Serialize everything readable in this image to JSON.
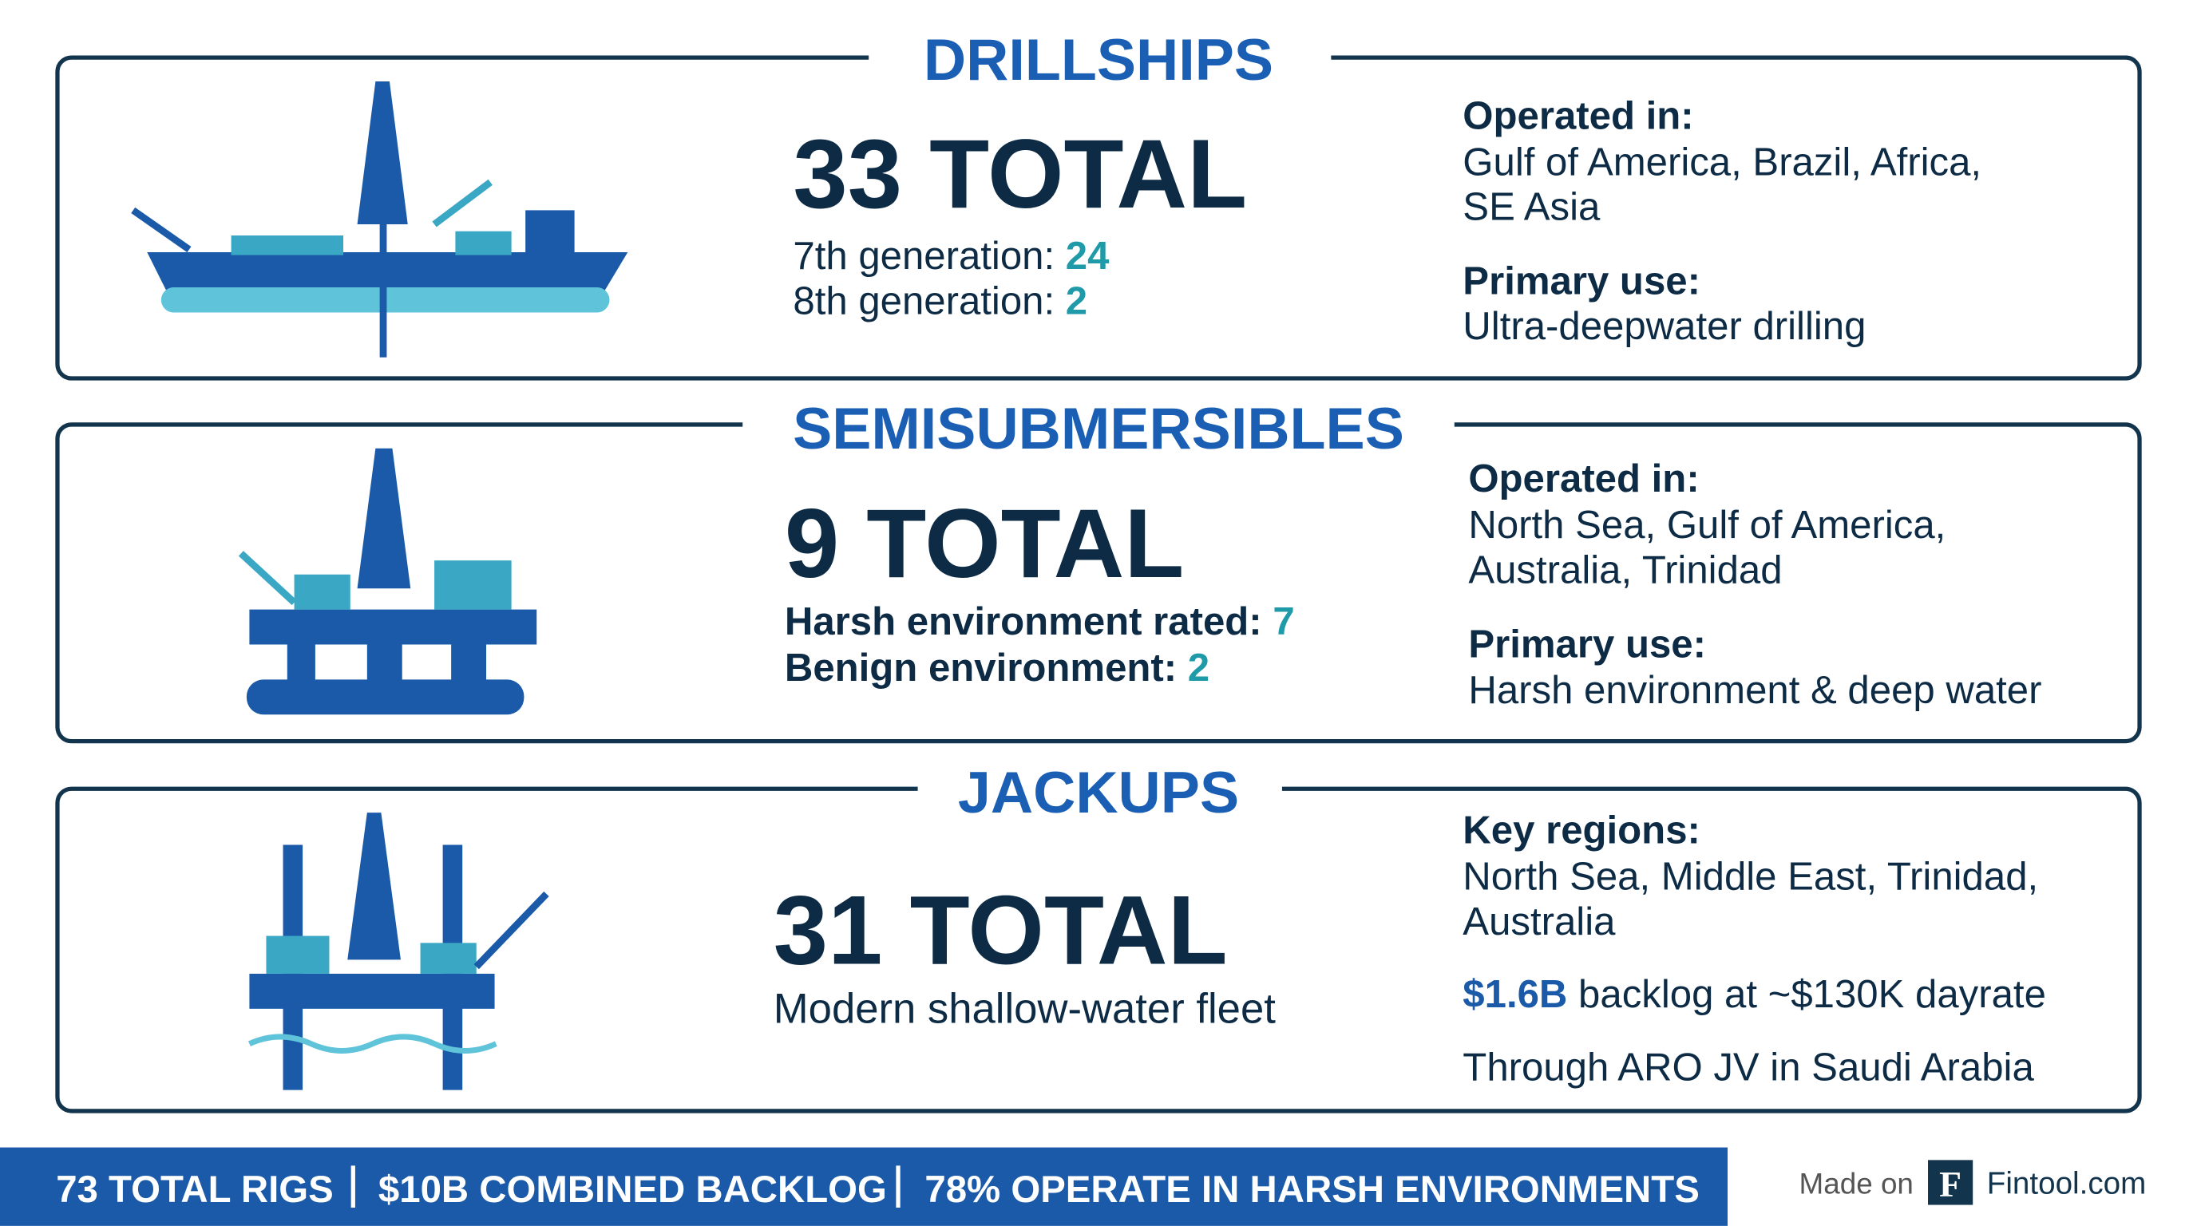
{
  "sections": [
    {
      "title": "DRILLSHIPS",
      "total": "33 TOTAL",
      "details": [
        {
          "label": "7th generation:",
          "value": "24"
        },
        {
          "label": "8th generation:",
          "value": "2"
        }
      ],
      "info": [
        {
          "label": "Operated in:",
          "lines": [
            "Gulf of America, Brazil, Africa,",
            "SE Asia"
          ]
        },
        {
          "label": "Primary use:",
          "lines": [
            "Ultra-deepwater drilling"
          ]
        }
      ]
    },
    {
      "title": "SEMISUBMERSIBLES",
      "total": "9 TOTAL",
      "details": [
        {
          "label": "Harsh environment rated:",
          "value": "7"
        },
        {
          "label": "Benign environment:",
          "value": "2"
        }
      ],
      "info": [
        {
          "label": "Operated in:",
          "lines": [
            "North Sea, Gulf of America,",
            "Australia, Trinidad"
          ]
        },
        {
          "label": "Primary use:",
          "lines": [
            "Harsh environment & deep water"
          ]
        }
      ]
    },
    {
      "title": "JACKUPS",
      "total": "31 TOTAL",
      "description": "Modern shallow-water fleet",
      "info": [
        {
          "label": "Key regions:",
          "lines": [
            "North Sea, Middle East, Trinidad,",
            "Australia"
          ]
        }
      ],
      "backlog": {
        "value": "$1.6B",
        "text": "backlog at ~$130K dayrate"
      },
      "note": "Through ARO JV in Saudi Arabia"
    }
  ],
  "footer": {
    "stats": [
      "73 TOTAL RIGS",
      "$10B COMBINED BACKLOG",
      "78% OPERATE IN HARSH ENVIRONMENTS"
    ],
    "made_on": "Made on",
    "logo": "F",
    "brand": "Fintool.com"
  }
}
